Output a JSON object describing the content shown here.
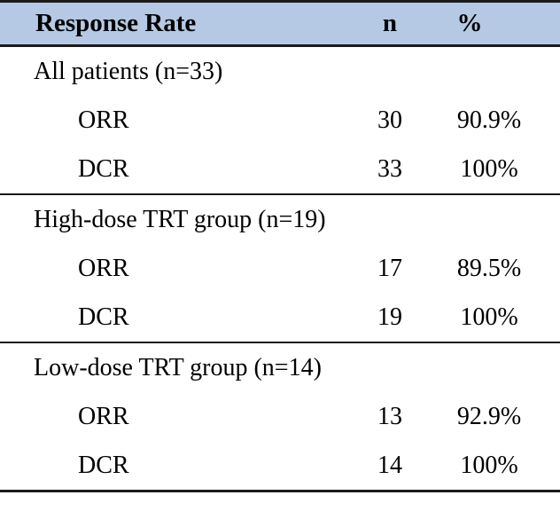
{
  "table": {
    "header": {
      "label": "Response Rate",
      "n": "n",
      "pct": "%"
    },
    "sections": [
      {
        "group": "All patients (n=33)",
        "rows": [
          {
            "label": "ORR",
            "n": "30",
            "pct": "90.9%"
          },
          {
            "label": "DCR",
            "n": "33",
            "pct": "100%"
          }
        ]
      },
      {
        "group": "High-dose TRT group (n=19)",
        "rows": [
          {
            "label": "ORR",
            "n": "17",
            "pct": "89.5%"
          },
          {
            "label": "DCR",
            "n": "19",
            "pct": "100%"
          }
        ]
      },
      {
        "group": "Low-dose TRT group (n=14)",
        "rows": [
          {
            "label": "ORR",
            "n": "13",
            "pct": "92.9%"
          },
          {
            "label": "DCR",
            "n": "14",
            "pct": "100%"
          }
        ]
      }
    ]
  },
  "colors": {
    "header_bg": "#b6c9e4",
    "rule": "#1a1a1a",
    "text": "#000000"
  }
}
